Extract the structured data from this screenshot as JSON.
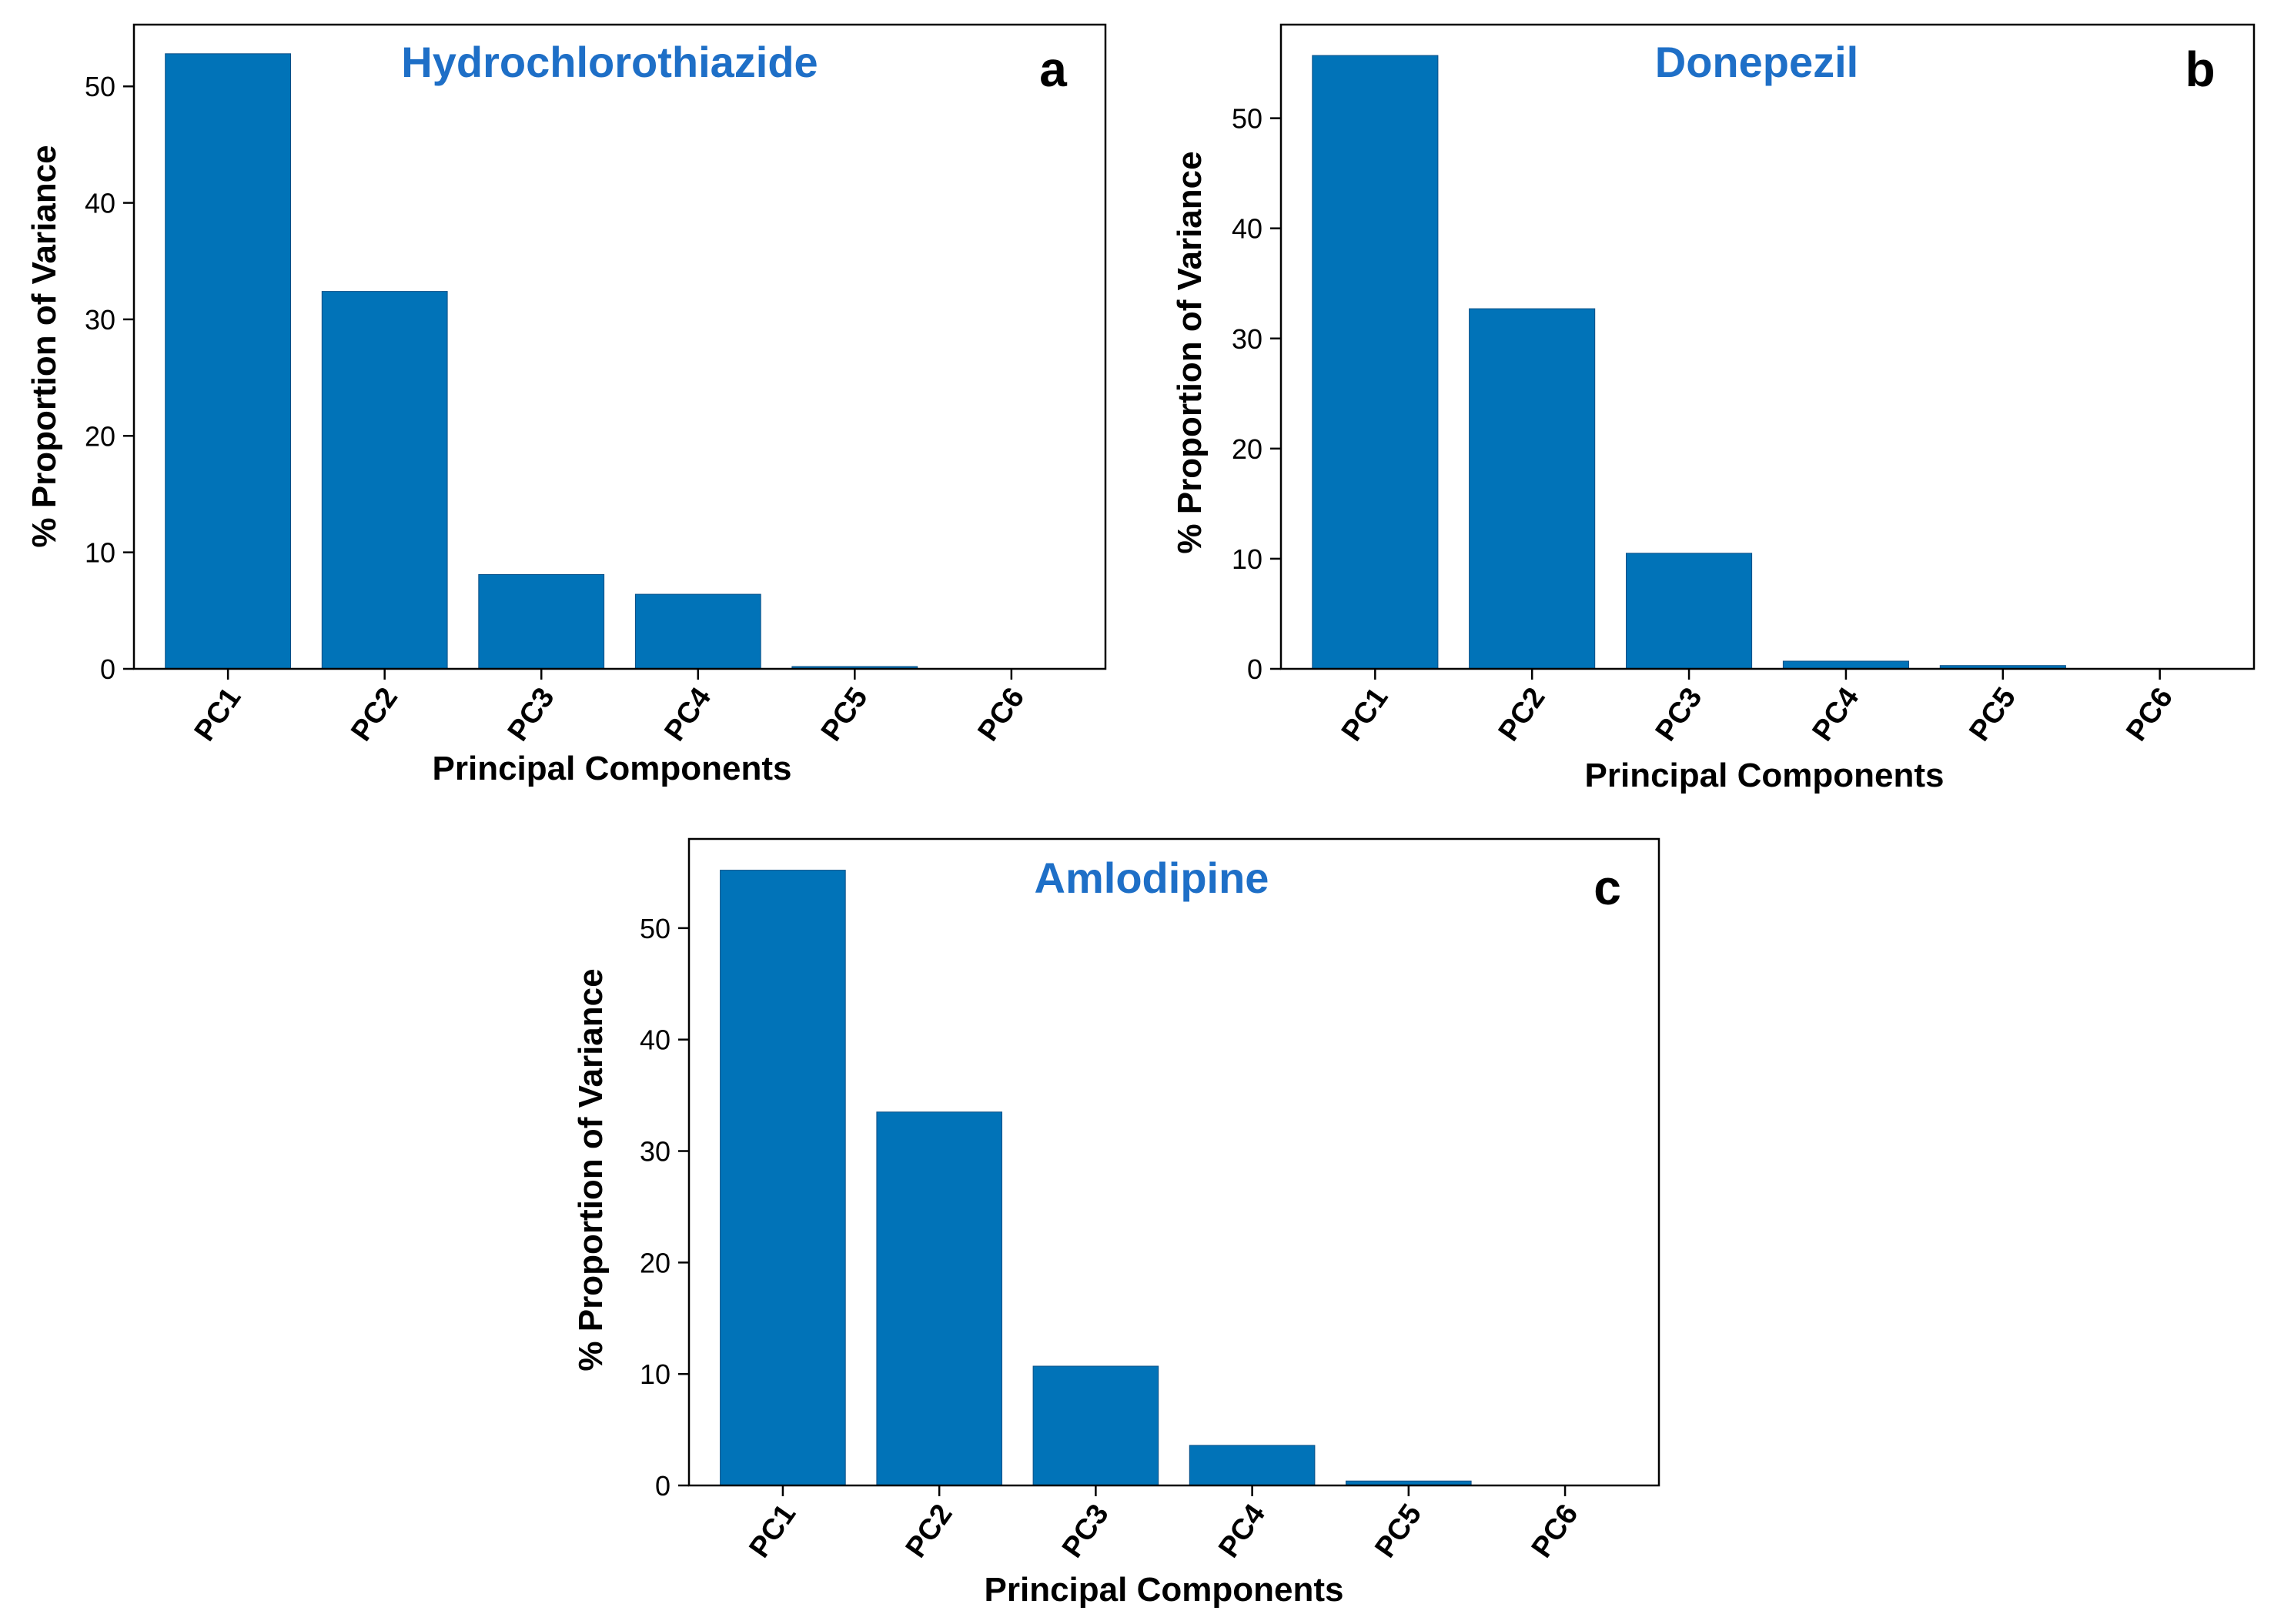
{
  "colors": {
    "bar": "#0173b8",
    "title": "#1e6fc7",
    "axis": "#000000"
  },
  "chart_data": [
    {
      "type": "bar",
      "panel_label": "a",
      "title": "Hydrochlorothiazide",
      "xlabel": "Principal Components",
      "ylabel": "% Proportion of Variance",
      "categories": [
        "PC1",
        "PC2",
        "PC3",
        "PC4",
        "PC5",
        "PC6"
      ],
      "values": [
        52.8,
        32.4,
        8.1,
        6.4,
        0.2,
        0.0
      ],
      "ylim": [
        0,
        55.3
      ],
      "yticks": [
        0,
        10,
        20,
        30,
        40,
        50
      ],
      "grid": false
    },
    {
      "type": "bar",
      "panel_label": "b",
      "title": "Donepezil",
      "xlabel": "Principal Components",
      "ylabel": "% Proportion of Variance",
      "categories": [
        "PC1",
        "PC2",
        "PC3",
        "PC4",
        "PC5",
        "PC6"
      ],
      "values": [
        55.7,
        32.7,
        10.5,
        0.7,
        0.3,
        0.0
      ],
      "ylim": [
        0,
        58.5
      ],
      "yticks": [
        0,
        10,
        20,
        30,
        40,
        50
      ],
      "grid": false
    },
    {
      "type": "bar",
      "panel_label": "c",
      "title": "Amlodipine",
      "xlabel": "Principal Components",
      "ylabel": "% Proportion of Variance",
      "categories": [
        "PC1",
        "PC2",
        "PC3",
        "PC4",
        "PC5",
        "PC6"
      ],
      "values": [
        55.2,
        33.5,
        10.7,
        3.6,
        0.4,
        0.0
      ],
      "ylim": [
        0,
        58.0
      ],
      "yticks": [
        0,
        10,
        20,
        30,
        40,
        50
      ],
      "grid": false
    }
  ]
}
